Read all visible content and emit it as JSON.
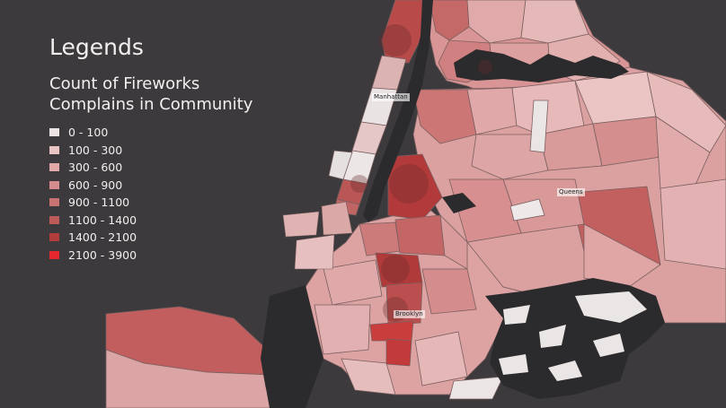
{
  "legend": {
    "heading": "Legends",
    "subtitle_line1": "Count of Fireworks",
    "subtitle_line2": "Complains in Community",
    "classes": [
      {
        "label": "0 - 100",
        "color": "#ece4e4"
      },
      {
        "label": "100 - 300",
        "color": "#e9c4c4"
      },
      {
        "label": "300 - 600",
        "color": "#e2a8a8"
      },
      {
        "label": "600 - 900",
        "color": "#d68c8c"
      },
      {
        "label": "900 - 1100",
        "color": "#c97272"
      },
      {
        "label": "1100 - 1400",
        "color": "#bd5a5a"
      },
      {
        "label": "1400 - 2100",
        "color": "#b03c3c"
      },
      {
        "label": "2100 - 3900",
        "color": "#e5262c"
      }
    ]
  },
  "places": {
    "manhattan": "Manhattan",
    "queens": "Queens",
    "brooklyn": "Brooklyn"
  },
  "colors": {
    "background": "#3d3a3d",
    "water": "#2b2a2c",
    "boundary": "#7a5f5f"
  }
}
